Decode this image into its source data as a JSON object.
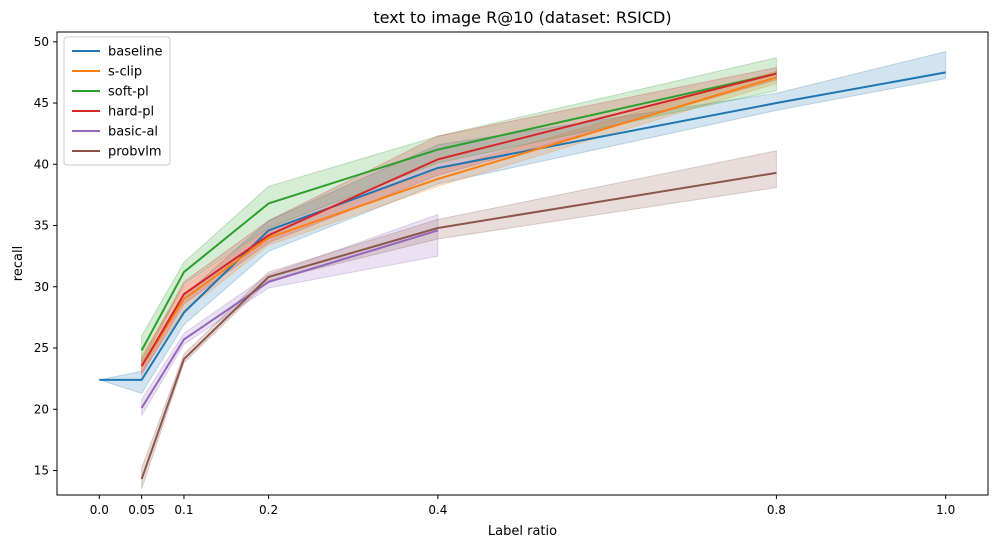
{
  "chart_data": {
    "type": "line",
    "title": "text to image R@10 (dataset: RSICD)",
    "xlabel": "Label ratio",
    "ylabel": "recall",
    "xlim": [
      -0.05,
      1.05
    ],
    "ylim": [
      13.0,
      50.8
    ],
    "xticks": [
      0.0,
      0.05,
      0.1,
      0.2,
      0.4,
      0.8,
      1.0
    ],
    "xtick_labels": [
      "0.0",
      "0.05",
      "0.1",
      "0.2",
      "0.4",
      "0.8",
      "1.0"
    ],
    "yticks": [
      15,
      20,
      25,
      30,
      35,
      40,
      45,
      50
    ],
    "ytick_labels": [
      "15",
      "20",
      "25",
      "30",
      "35",
      "40",
      "45",
      "50"
    ],
    "grid": false,
    "legend_position": "top-left",
    "series": [
      {
        "name": "baseline",
        "color": "#1f77b4",
        "x": [
          0.0,
          0.05,
          0.1,
          0.2,
          0.4,
          0.8,
          1.0
        ],
        "y": [
          22.4,
          22.4,
          27.9,
          34.6,
          39.7,
          45.0,
          47.5
        ],
        "lower": [
          22.4,
          21.3,
          26.9,
          32.9,
          38.4,
          44.4,
          47.0
        ],
        "upper": [
          22.4,
          23.1,
          29.3,
          35.4,
          41.6,
          45.8,
          49.2
        ]
      },
      {
        "name": "s-clip",
        "color": "#ff7f0e",
        "x": [
          0.05,
          0.1,
          0.2,
          0.4,
          0.8
        ],
        "y": [
          23.5,
          29.0,
          34.0,
          38.8,
          47.1
        ],
        "lower": [
          23.0,
          28.0,
          33.4,
          38.2,
          46.6
        ],
        "upper": [
          24.4,
          30.0,
          34.7,
          39.5,
          47.6
        ]
      },
      {
        "name": "soft-pl",
        "color": "#2ca02c",
        "x": [
          0.05,
          0.1,
          0.2,
          0.4,
          0.8
        ],
        "y": [
          24.8,
          31.2,
          36.8,
          41.2,
          47.4
        ],
        "lower": [
          23.7,
          30.2,
          34.8,
          40.1,
          46.0
        ],
        "upper": [
          26.0,
          32.0,
          38.2,
          42.3,
          48.7
        ]
      },
      {
        "name": "hard-pl",
        "color": "#d62728",
        "x": [
          0.05,
          0.1,
          0.2,
          0.4,
          0.8
        ],
        "y": [
          23.5,
          29.4,
          34.2,
          40.4,
          47.4
        ],
        "lower": [
          22.8,
          28.6,
          33.6,
          39.1,
          46.9
        ],
        "upper": [
          24.1,
          30.4,
          35.4,
          42.3,
          47.9
        ]
      },
      {
        "name": "basic-al",
        "color": "#9467bd",
        "x": [
          0.05,
          0.1,
          0.2,
          0.4
        ],
        "y": [
          20.1,
          25.7,
          30.4,
          34.6
        ],
        "lower": [
          19.5,
          25.3,
          29.9,
          32.5
        ],
        "upper": [
          20.8,
          26.2,
          31.0,
          35.9
        ]
      },
      {
        "name": "probvlm",
        "color": "#8c564b",
        "x": [
          0.05,
          0.1,
          0.2,
          0.4,
          0.8
        ],
        "y": [
          14.3,
          24.1,
          30.8,
          34.8,
          39.3
        ],
        "lower": [
          13.5,
          23.8,
          30.5,
          33.9,
          38.1
        ],
        "upper": [
          15.2,
          24.5,
          31.2,
          35.5,
          41.1
        ]
      }
    ]
  }
}
